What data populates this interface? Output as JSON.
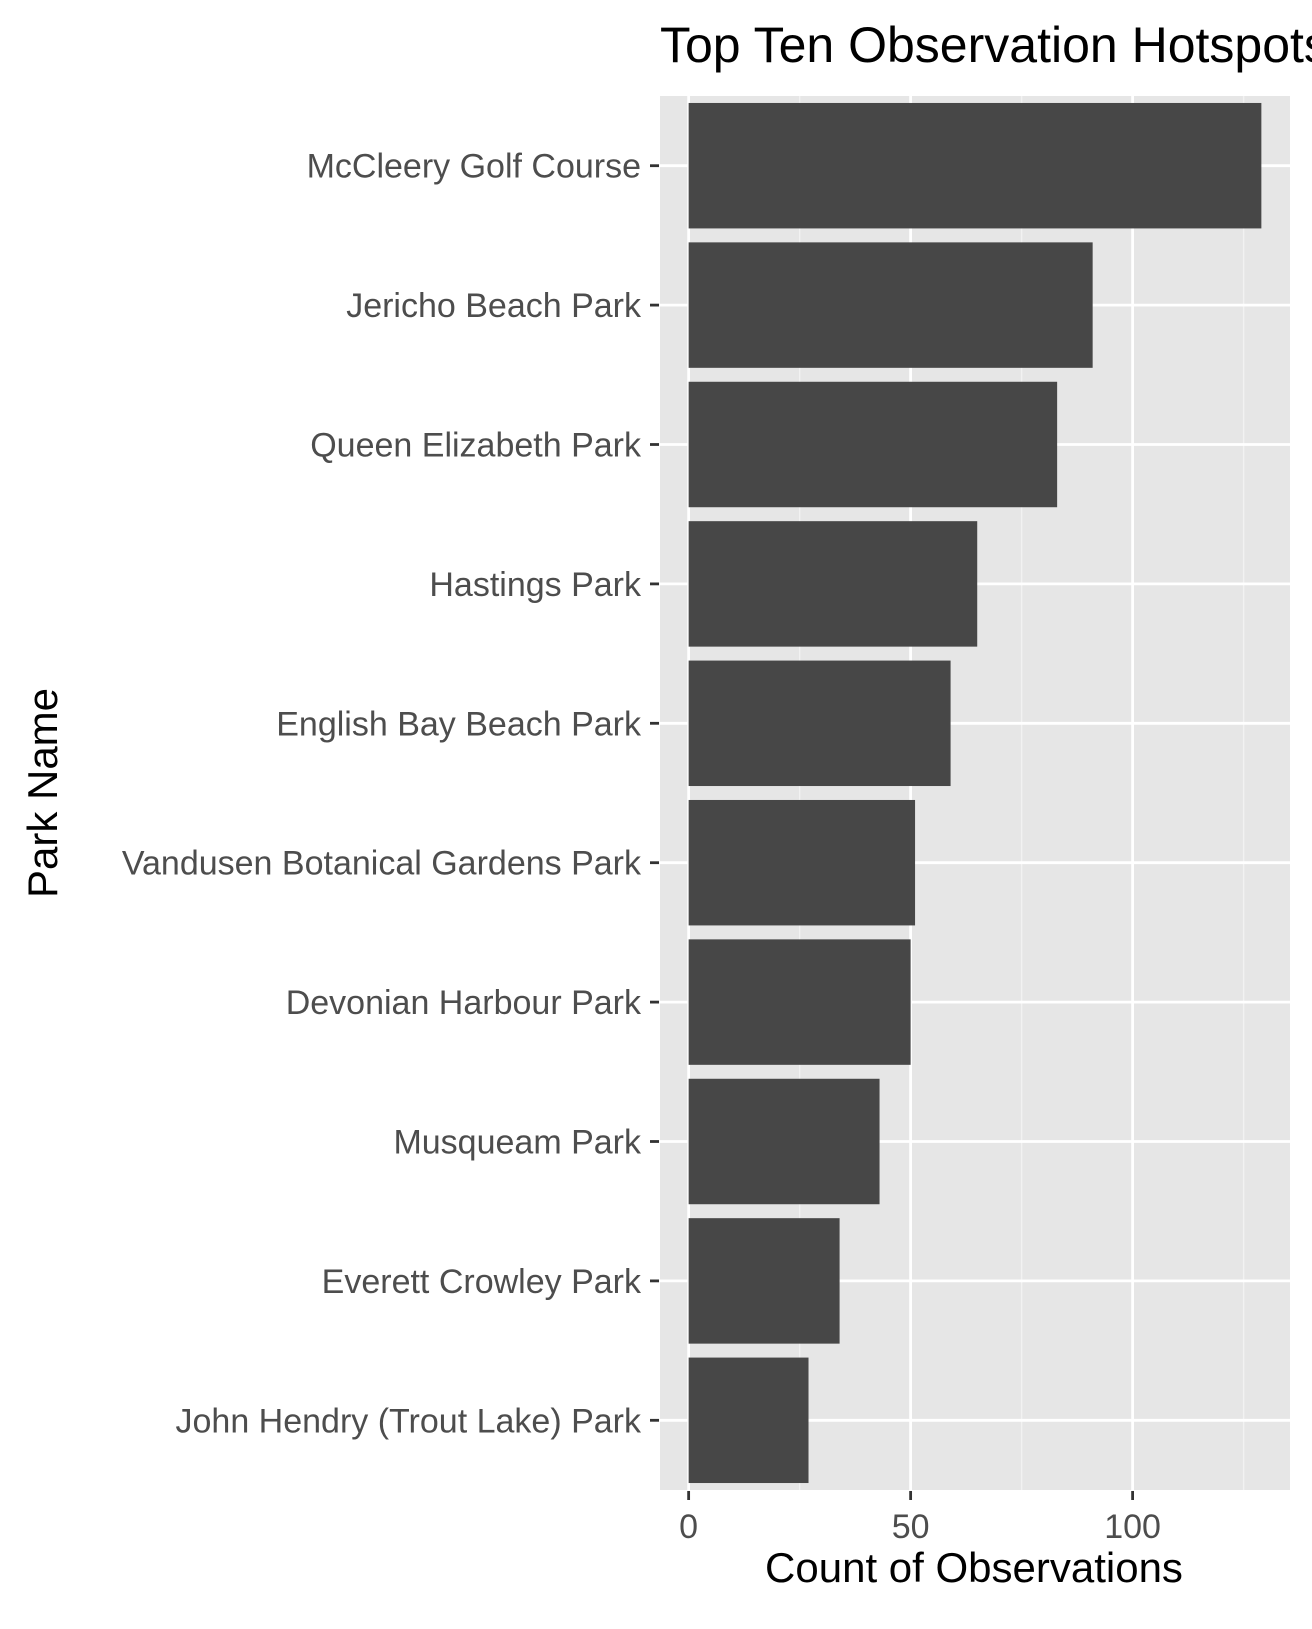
{
  "chart_data": {
    "type": "bar",
    "orientation": "horizontal",
    "title": "Top Ten Observation Hotspots",
    "xlabel": "Count of Observations",
    "ylabel": "Park Name",
    "categories": [
      "McCleery Golf Course",
      "Jericho Beach Park",
      "Queen Elizabeth Park",
      "Hastings Park",
      "English Bay Beach Park",
      "Vandusen Botanical Gardens Park",
      "Devonian Harbour Park",
      "Musqueam Park",
      "Everett Crowley Park",
      "John Hendry (Trout Lake) Park"
    ],
    "values": [
      129,
      91,
      83,
      65,
      59,
      51,
      50,
      43,
      34,
      27
    ],
    "xlim": [
      -6.45,
      135.45
    ],
    "xticks": [
      0,
      50,
      100
    ],
    "xtick_labels": [
      "0",
      "50",
      "100"
    ],
    "grid": true,
    "legend": "none",
    "colors": {
      "bar": "#474747",
      "panel_background": "#e6e6e6",
      "grid_major": "#ffffff",
      "grid_minor": "#f2f2f2",
      "tick_text": "#4d4d4d",
      "title_text": "#000000"
    }
  }
}
